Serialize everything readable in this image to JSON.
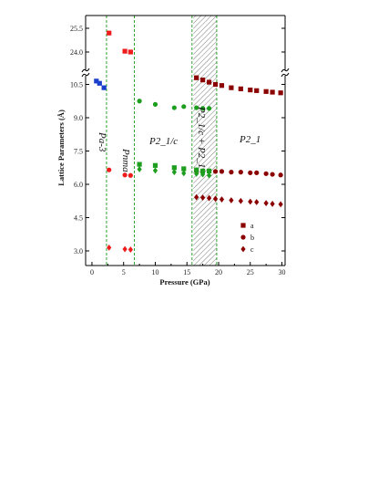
{
  "chart_data": {
    "type": "scatter",
    "xlabel": "Pressure (GPa)",
    "ylabel": "Lattice Parameters (Å)",
    "xlim": [
      -1,
      30.5
    ],
    "xticks": [
      "0",
      "5",
      "10",
      "15",
      "20",
      "25",
      "30"
    ],
    "yticks_upper": [
      "24.0",
      "25.5"
    ],
    "yticks_lower": [
      "3.0",
      "4.5",
      "6.0",
      "7.5",
      "9.0",
      "10.5"
    ],
    "axis_break": "between 10.5 and 24.0",
    "grid": false,
    "legend_placement": "bottom-right",
    "phase_boundaries": [
      2.3,
      6.7,
      15.8,
      19.7
    ],
    "coexistence_region": [
      16.0,
      19.7
    ],
    "phase_labels": [
      "Pa-3",
      "Pnma",
      "P2_1/c",
      "P2_1/c + P2_1",
      "P2_1"
    ],
    "series": [
      {
        "name": "a",
        "marker": "square",
        "color": "#8b0000",
        "points": [
          [
            16.5,
            10.8
          ],
          [
            17.5,
            10.7
          ],
          [
            18.5,
            10.6
          ],
          [
            19.5,
            10.5
          ],
          [
            20.5,
            10.45
          ],
          [
            22,
            10.35
          ],
          [
            23.5,
            10.3
          ],
          [
            25,
            10.25
          ],
          [
            26,
            10.22
          ],
          [
            27.5,
            10.18
          ],
          [
            28.5,
            10.15
          ],
          [
            29.8,
            10.12
          ]
        ]
      },
      {
        "name": "b",
        "marker": "circle",
        "color": "#8b0000",
        "points": [
          [
            16.5,
            6.6
          ],
          [
            17.5,
            6.6
          ],
          [
            18.5,
            6.6
          ],
          [
            19.5,
            6.58
          ],
          [
            20.5,
            6.58
          ],
          [
            22,
            6.55
          ],
          [
            23.5,
            6.55
          ],
          [
            25,
            6.52
          ],
          [
            26,
            6.52
          ],
          [
            27.5,
            6.48
          ],
          [
            28.5,
            6.45
          ],
          [
            29.8,
            6.42
          ]
        ]
      },
      {
        "name": "c",
        "marker": "diamond",
        "color": "#8b0000",
        "points": [
          [
            16.5,
            5.42
          ],
          [
            17.5,
            5.4
          ],
          [
            18.5,
            5.38
          ],
          [
            19.5,
            5.35
          ],
          [
            20.5,
            5.32
          ],
          [
            22,
            5.28
          ],
          [
            23.5,
            5.25
          ],
          [
            25,
            5.22
          ],
          [
            26,
            5.2
          ],
          [
            27.5,
            5.15
          ],
          [
            28.5,
            5.12
          ],
          [
            29.8,
            5.1
          ]
        ]
      },
      {
        "name": "Pa-3 a",
        "marker": "square",
        "color": "#1a3fcc",
        "points": [
          [
            0.7,
            10.65
          ],
          [
            1.2,
            10.55
          ],
          [
            1.9,
            10.35
          ]
        ]
      },
      {
        "name": "Pnma a",
        "marker": "square",
        "color": "#ee1c1c",
        "points": [
          [
            2.7,
            25.2
          ],
          [
            5.2,
            24.05
          ],
          [
            6.1,
            24.0
          ]
        ]
      },
      {
        "name": "Pnma b",
        "marker": "circle",
        "color": "#ee1c1c",
        "points": [
          [
            2.7,
            6.65
          ],
          [
            5.2,
            6.42
          ],
          [
            6.1,
            6.4
          ]
        ]
      },
      {
        "name": "Pnma c",
        "marker": "diamond",
        "color": "#ee1c1c",
        "points": [
          [
            2.7,
            3.15
          ],
          [
            5.2,
            3.08
          ],
          [
            6.1,
            3.06
          ]
        ]
      },
      {
        "name": "P21/c a",
        "marker": "circle",
        "color": "#1e9e1e",
        "points": [
          [
            7.5,
            9.75
          ],
          [
            10,
            9.6
          ],
          [
            13,
            9.45
          ],
          [
            14.5,
            9.5
          ],
          [
            16.5,
            9.45
          ],
          [
            17.5,
            9.42
          ],
          [
            18.5,
            9.42
          ]
        ]
      },
      {
        "name": "P21/c b",
        "marker": "square",
        "color": "#1e9e1e",
        "points": [
          [
            7.5,
            6.9
          ],
          [
            10,
            6.85
          ],
          [
            13,
            6.75
          ],
          [
            14.5,
            6.7
          ],
          [
            16.5,
            6.65
          ],
          [
            17.5,
            6.6
          ],
          [
            18.5,
            6.6
          ]
        ]
      },
      {
        "name": "P21/c c",
        "marker": "diamond",
        "color": "#1e9e1e",
        "points": [
          [
            7.5,
            6.68
          ],
          [
            10,
            6.62
          ],
          [
            13,
            6.55
          ],
          [
            14.5,
            6.5
          ],
          [
            16.5,
            6.48
          ],
          [
            17.5,
            6.45
          ],
          [
            18.5,
            6.4
          ]
        ]
      }
    ]
  }
}
